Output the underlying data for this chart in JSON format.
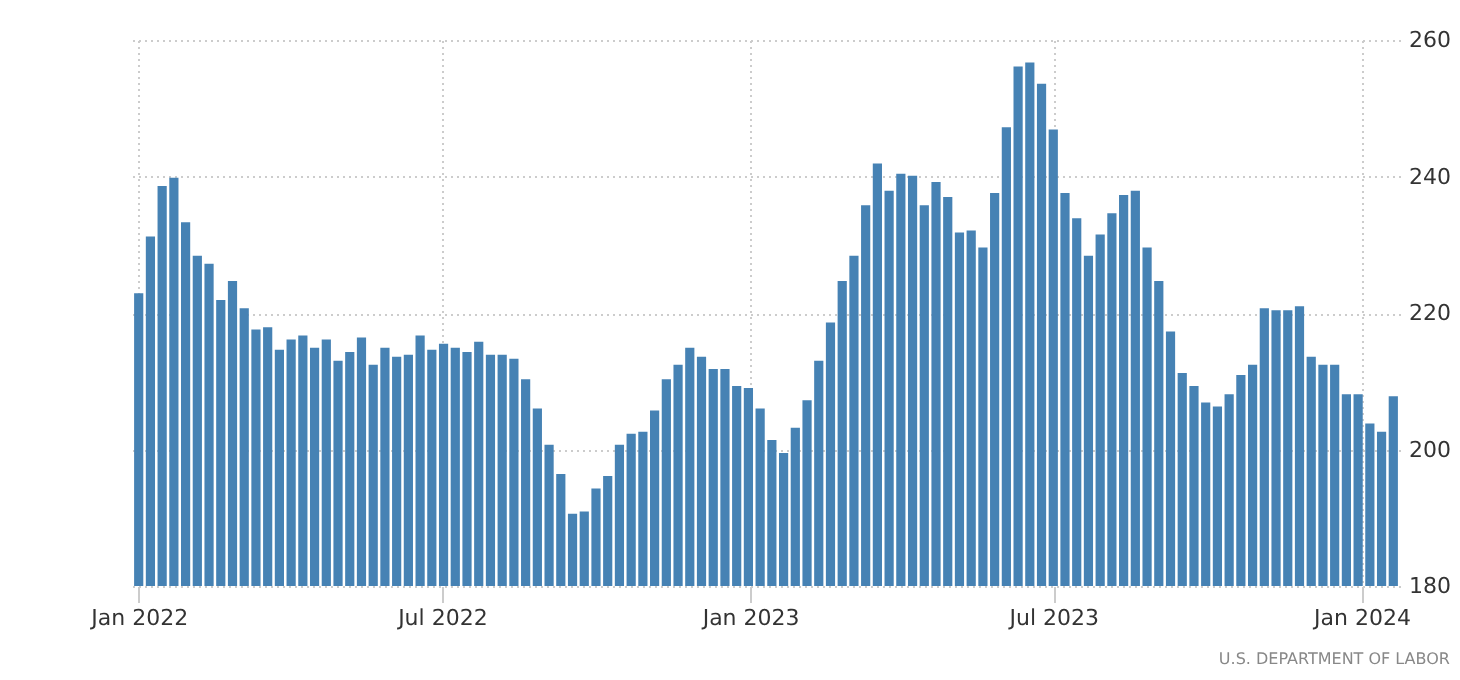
{
  "chart_data": {
    "type": "bar",
    "x": [
      "2022-01-01",
      "2022-01-08",
      "2022-01-15",
      "2022-01-22",
      "2022-01-29",
      "2022-02-05",
      "2022-02-12",
      "2022-02-19",
      "2022-02-26",
      "2022-03-05",
      "2022-03-12",
      "2022-03-19",
      "2022-03-26",
      "2022-04-02",
      "2022-04-09",
      "2022-04-16",
      "2022-04-23",
      "2022-04-30",
      "2022-05-07",
      "2022-05-14",
      "2022-05-21",
      "2022-05-28",
      "2022-06-04",
      "2022-06-11",
      "2022-06-18",
      "2022-06-25",
      "2022-07-02",
      "2022-07-09",
      "2022-07-16",
      "2022-07-23",
      "2022-07-30",
      "2022-08-06",
      "2022-08-13",
      "2022-08-20",
      "2022-08-27",
      "2022-09-03",
      "2022-09-10",
      "2022-09-17",
      "2022-09-24",
      "2022-10-01",
      "2022-10-08",
      "2022-10-15",
      "2022-10-22",
      "2022-10-29",
      "2022-11-05",
      "2022-11-12",
      "2022-11-19",
      "2022-11-26",
      "2022-12-03",
      "2022-12-10",
      "2022-12-17",
      "2022-12-24",
      "2022-12-31",
      "2023-01-07",
      "2023-01-14",
      "2023-01-21",
      "2023-01-28",
      "2023-02-04",
      "2023-02-11",
      "2023-02-18",
      "2023-02-25",
      "2023-03-04",
      "2023-03-11",
      "2023-03-18",
      "2023-03-25",
      "2023-04-01",
      "2023-04-08",
      "2023-04-15",
      "2023-04-22",
      "2023-04-29",
      "2023-05-06",
      "2023-05-13",
      "2023-05-20",
      "2023-05-27",
      "2023-06-03",
      "2023-06-10",
      "2023-06-17",
      "2023-06-24",
      "2023-07-01",
      "2023-07-08",
      "2023-07-15",
      "2023-07-22",
      "2023-07-29",
      "2023-08-05",
      "2023-08-12",
      "2023-08-19",
      "2023-08-26",
      "2023-09-02",
      "2023-09-09",
      "2023-09-16",
      "2023-09-23",
      "2023-09-30",
      "2023-10-07",
      "2023-10-14",
      "2023-10-21",
      "2023-10-28",
      "2023-11-04",
      "2023-11-11",
      "2023-11-18",
      "2023-11-25",
      "2023-12-02",
      "2023-12-09",
      "2023-12-16",
      "2023-12-23",
      "2023-12-30",
      "2024-01-06",
      "2024-01-13",
      "2024-01-20"
    ],
    "values": [
      222.9,
      231.2,
      238.6,
      239.8,
      233.3,
      228.4,
      227.2,
      221.9,
      224.7,
      220.7,
      217.6,
      217.9,
      214.6,
      216.1,
      216.7,
      214.9,
      216.1,
      213.0,
      214.3,
      216.4,
      212.4,
      214.9,
      213.6,
      213.9,
      216.7,
      214.6,
      215.5,
      214.9,
      214.3,
      215.8,
      213.9,
      213.9,
      213.3,
      210.3,
      206.0,
      200.7,
      196.4,
      190.6,
      190.9,
      194.3,
      196.1,
      200.7,
      202.3,
      202.6,
      205.7,
      210.3,
      212.4,
      214.9,
      213.6,
      211.8,
      211.8,
      209.3,
      209.0,
      206.0,
      201.4,
      199.5,
      203.2,
      207.2,
      213.0,
      218.6,
      224.7,
      228.4,
      235.8,
      241.9,
      237.9,
      240.4,
      240.1,
      235.8,
      239.2,
      237.0,
      231.8,
      232.1,
      229.6,
      237.6,
      247.2,
      256.1,
      256.7,
      253.6,
      246.9,
      237.6,
      233.9,
      228.4,
      231.5,
      234.6,
      237.3,
      237.9,
      229.6,
      224.7,
      217.3,
      211.2,
      209.3,
      206.9,
      206.3,
      208.1,
      210.9,
      212.4,
      220.7,
      220.4,
      220.4,
      221.0,
      213.6,
      212.4,
      212.4,
      208.1,
      208.1,
      203.8,
      202.6,
      207.8
    ],
    "color": "#4682b4",
    "xlim": [
      "2021-12-28",
      "2024-01-24"
    ],
    "xticks": [
      {
        "value": "2022-01-01",
        "label": "Jan 2022"
      },
      {
        "value": "2022-07-01",
        "label": "Jul 2022"
      },
      {
        "value": "2023-01-01",
        "label": "Jan 2023"
      },
      {
        "value": "2023-07-01",
        "label": "Jul 2023"
      },
      {
        "value": "2024-01-01",
        "label": "Jan 2024"
      }
    ],
    "ylim": [
      180,
      260
    ],
    "yticks": [
      180,
      200,
      220,
      240,
      260
    ],
    "grid": true,
    "annotations": [
      "U.S. DEPARTMENT OF LABOR"
    ]
  }
}
